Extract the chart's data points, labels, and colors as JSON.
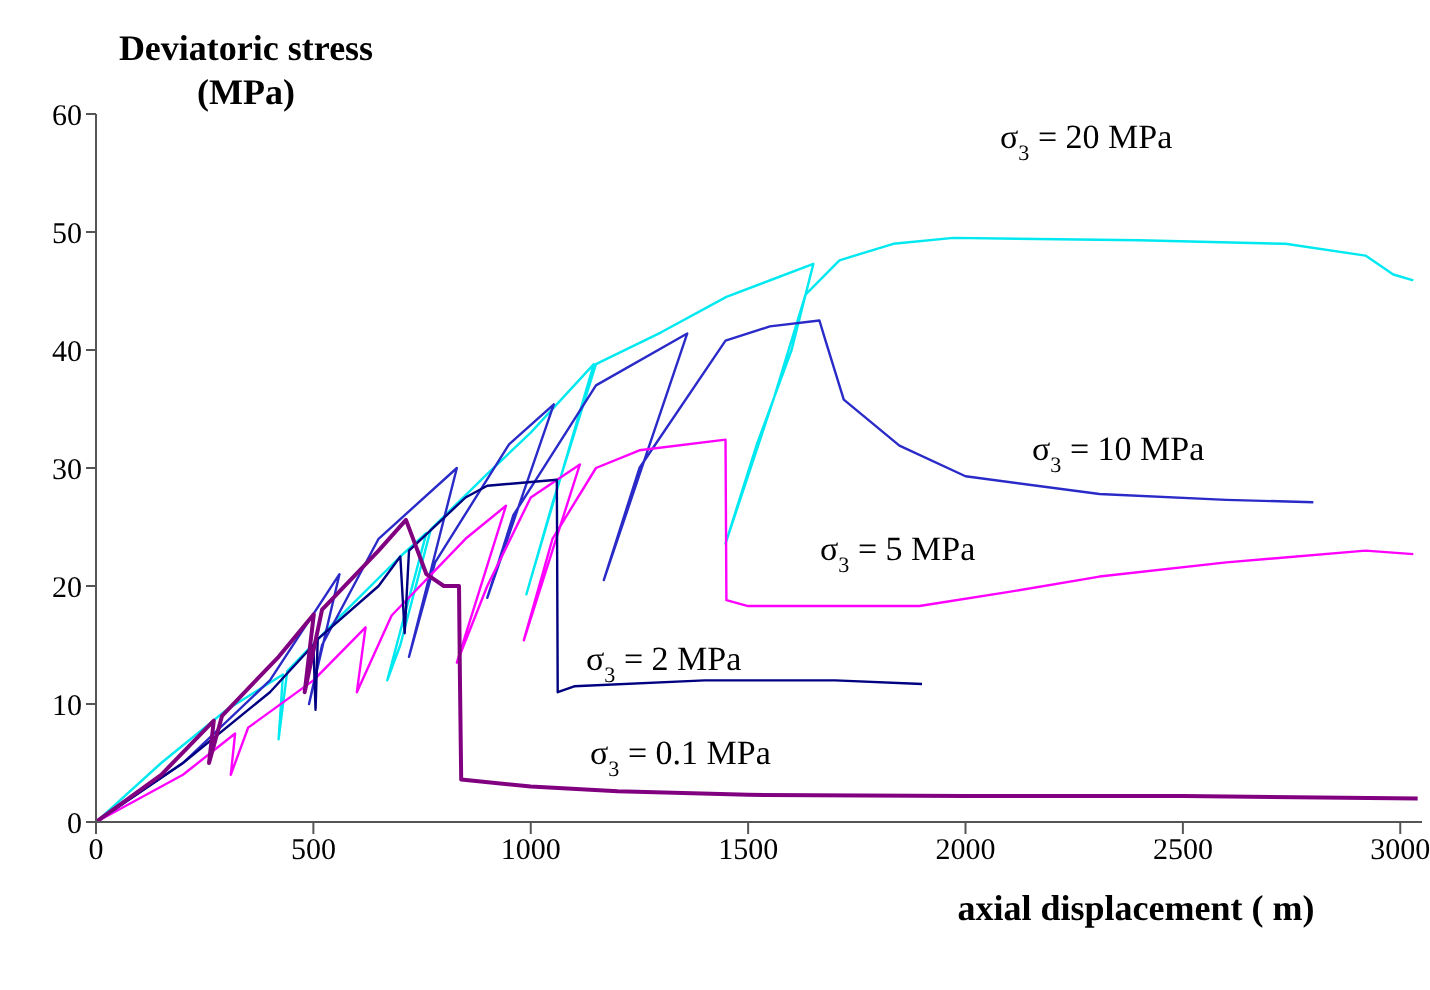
{
  "chart_data": {
    "type": "line",
    "ylabel": "Deviatoric stress (MPa)",
    "xlabel": "axial displacement (  m)",
    "xlim": [
      0,
      3050
    ],
    "xticks": [
      0,
      500,
      1000,
      1500,
      2000,
      2500,
      3000
    ],
    "ylim": [
      0,
      60
    ],
    "yticks": [
      0,
      10,
      20,
      30,
      40,
      50,
      60
    ],
    "marker": "none",
    "line_style": "solid",
    "series": [
      {
        "name": "σ$_{3}$ = 20 MPa",
        "color": "#00e8f0",
        "x": [
          0,
          150,
          300,
          430,
          420,
          440,
          550,
          700,
          760,
          670,
          700,
          770,
          900,
          1000,
          1145,
          990,
          1050,
          1150,
          1300,
          1450,
          1650,
          1600,
          1520,
          1448,
          1560,
          1632,
          1710,
          1834,
          1972,
          2400,
          2736,
          2920,
          2984,
          3030
        ],
        "values": [
          0,
          5,
          9.5,
          12.5,
          7,
          12.8,
          17,
          22.5,
          24.5,
          12,
          15,
          24.8,
          29.5,
          33,
          38.8,
          19.3,
          27,
          38.8,
          41.5,
          44.5,
          47.3,
          40,
          32,
          23.6,
          36,
          44.7,
          47.6,
          49,
          49.5,
          49.3,
          49,
          48,
          46.4,
          45.9
        ]
      },
      {
        "name": "σ$_{3}$ = 10 MPa",
        "color": "#2a2ac8",
        "x": [
          0,
          200,
          400,
          560,
          490,
          520,
          650,
          830,
          720,
          780,
          950,
          1053,
          900,
          960,
          1150,
          1360,
          1168,
          1250,
          1448,
          1550,
          1664,
          1678,
          1720,
          1848,
          2000,
          2308,
          2600,
          2800
        ],
        "values": [
          0,
          5,
          12,
          21,
          10,
          15,
          24,
          30,
          14,
          22,
          32,
          35.4,
          19,
          26,
          37,
          41.4,
          20.5,
          30,
          40.8,
          42,
          42.5,
          40.8,
          35.8,
          31.9,
          29.3,
          27.8,
          27.3,
          27.1
        ]
      },
      {
        "name": "σ$_{3}$ = 5 MPa",
        "color": "#ff00ff",
        "x": [
          0,
          200,
          320,
          310,
          350,
          500,
          620,
          600,
          680,
          850,
          943,
          830,
          900,
          1000,
          1113,
          984,
          1050,
          1150,
          1250,
          1448,
          1450,
          1500,
          1697,
          1894,
          2100,
          2308,
          2600,
          2920,
          3030
        ],
        "values": [
          0,
          4,
          7.5,
          4,
          8,
          12,
          16.5,
          11,
          17.5,
          24,
          26.8,
          13.5,
          20,
          27.5,
          30.3,
          15.4,
          24,
          30,
          31.5,
          32.4,
          18.8,
          18.3,
          18.3,
          18.3,
          19.5,
          20.8,
          22,
          23,
          22.7
        ]
      },
      {
        "name": "σ$_{3}$ = 2 MPa",
        "color": "#000080",
        "x": [
          0,
          200,
          400,
          500,
          505,
          510,
          650,
          700,
          710,
          720,
          850,
          900,
          1060,
          1062,
          1100,
          1400,
          1700,
          1900
        ],
        "values": [
          0,
          5,
          11,
          15,
          9.5,
          15.5,
          20,
          22.5,
          16,
          23,
          27.5,
          28.5,
          29,
          11,
          11.5,
          12,
          12,
          11.7
        ]
      },
      {
        "name": "σ$_{3}$ = 0.1 MPa",
        "color": "#800080",
        "x": [
          0,
          150,
          271,
          260,
          290,
          420,
          501,
          480,
          520,
          650,
          713,
          760,
          800,
          835,
          837,
          840,
          1000,
          1200,
          1500,
          2000,
          2500,
          3040
        ],
        "values": [
          0,
          4,
          8.6,
          5,
          9,
          14,
          17.6,
          11,
          18,
          23,
          25.6,
          21,
          20,
          20,
          12.5,
          3.6,
          3,
          2.6,
          2.3,
          2.2,
          2.2,
          2
        ]
      }
    ]
  }
}
